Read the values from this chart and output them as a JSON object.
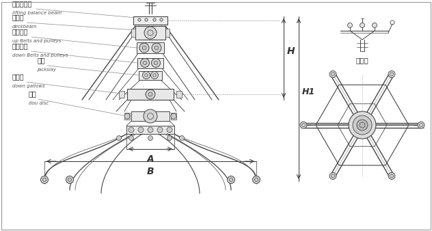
{
  "bg_color": "#ffffff",
  "line_color": "#444444",
  "dim_color": "#333333",
  "text_color": "#222222",
  "labels_zh": [
    "提升平衡梁",
    "上承梁",
    "上滑轮组",
    "下滑轮组",
    "撑杆",
    "下承梁",
    "斗瓣"
  ],
  "labels_en": [
    "lifting balance beam",
    "deckbeam",
    "up Belts and pulleys",
    "down Belts and pulleys",
    "jackslay",
    "down gallows",
    "dou disc"
  ],
  "fig_width": 6.32,
  "fig_height": 3.37
}
